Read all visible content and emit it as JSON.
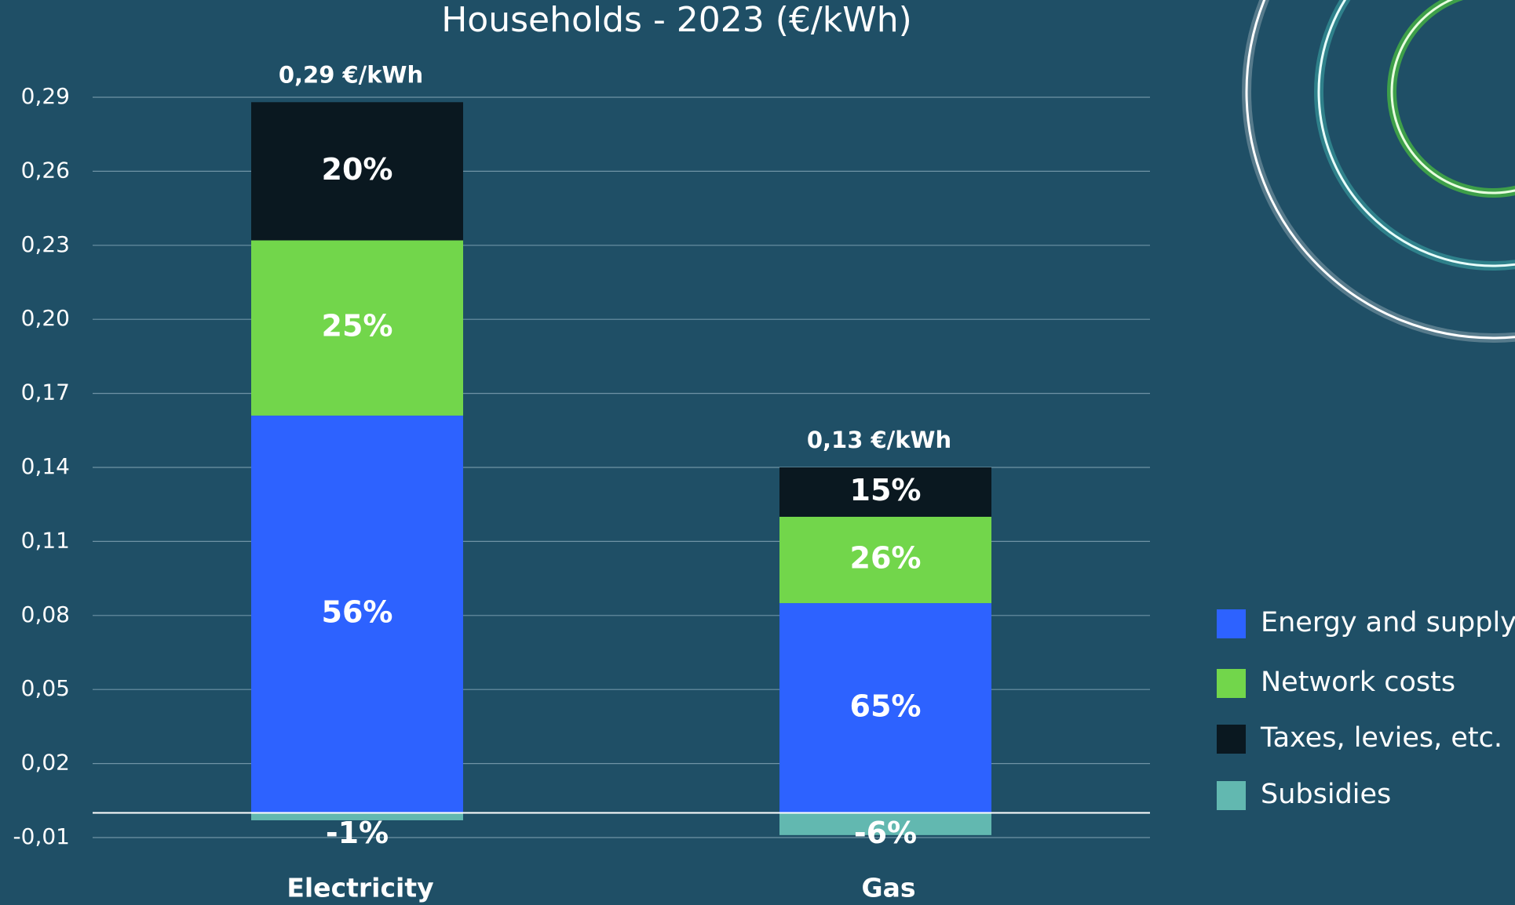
{
  "chart_data": {
    "type": "stacked_bar",
    "title": "Households - 2023 (€/kWh)",
    "categories": [
      "Electricity",
      "Gas"
    ],
    "total_labels": [
      "0,29 €/kWh",
      "0,13 €/kWh"
    ],
    "series": [
      {
        "name": "Energy and supply",
        "color": "#2d62ff",
        "values": [
          0.161,
          0.085
        ],
        "percent_labels": [
          "56%",
          "65%"
        ]
      },
      {
        "name": "Network costs",
        "color": "#72d64b",
        "values": [
          0.071,
          0.035
        ],
        "percent_labels": [
          "25%",
          "26%"
        ]
      },
      {
        "name": "Taxes, levies, etc.",
        "color": "#0a1820",
        "values": [
          0.056,
          0.02
        ],
        "percent_labels": [
          "20%",
          "15%"
        ]
      },
      {
        "name": "Subsidies",
        "color": "#62b8b0",
        "values": [
          -0.003,
          -0.009
        ],
        "percent_labels": [
          "-1%",
          "-6%"
        ]
      }
    ],
    "ylim": [
      -0.01,
      0.29
    ],
    "yticks": [
      {
        "value": 0.29,
        "label": "0,29"
      },
      {
        "value": 0.26,
        "label": "0,26"
      },
      {
        "value": 0.23,
        "label": "0,23"
      },
      {
        "value": 0.2,
        "label": "0,20"
      },
      {
        "value": 0.17,
        "label": "0,17"
      },
      {
        "value": 0.14,
        "label": "0,14"
      },
      {
        "value": 0.11,
        "label": "0,11"
      },
      {
        "value": 0.08,
        "label": "0,08"
      },
      {
        "value": 0.05,
        "label": "0,05"
      },
      {
        "value": 0.02,
        "label": "0,02"
      },
      {
        "value": -0.01,
        "label": "-0,01"
      }
    ],
    "grid": true,
    "legend": "right"
  }
}
